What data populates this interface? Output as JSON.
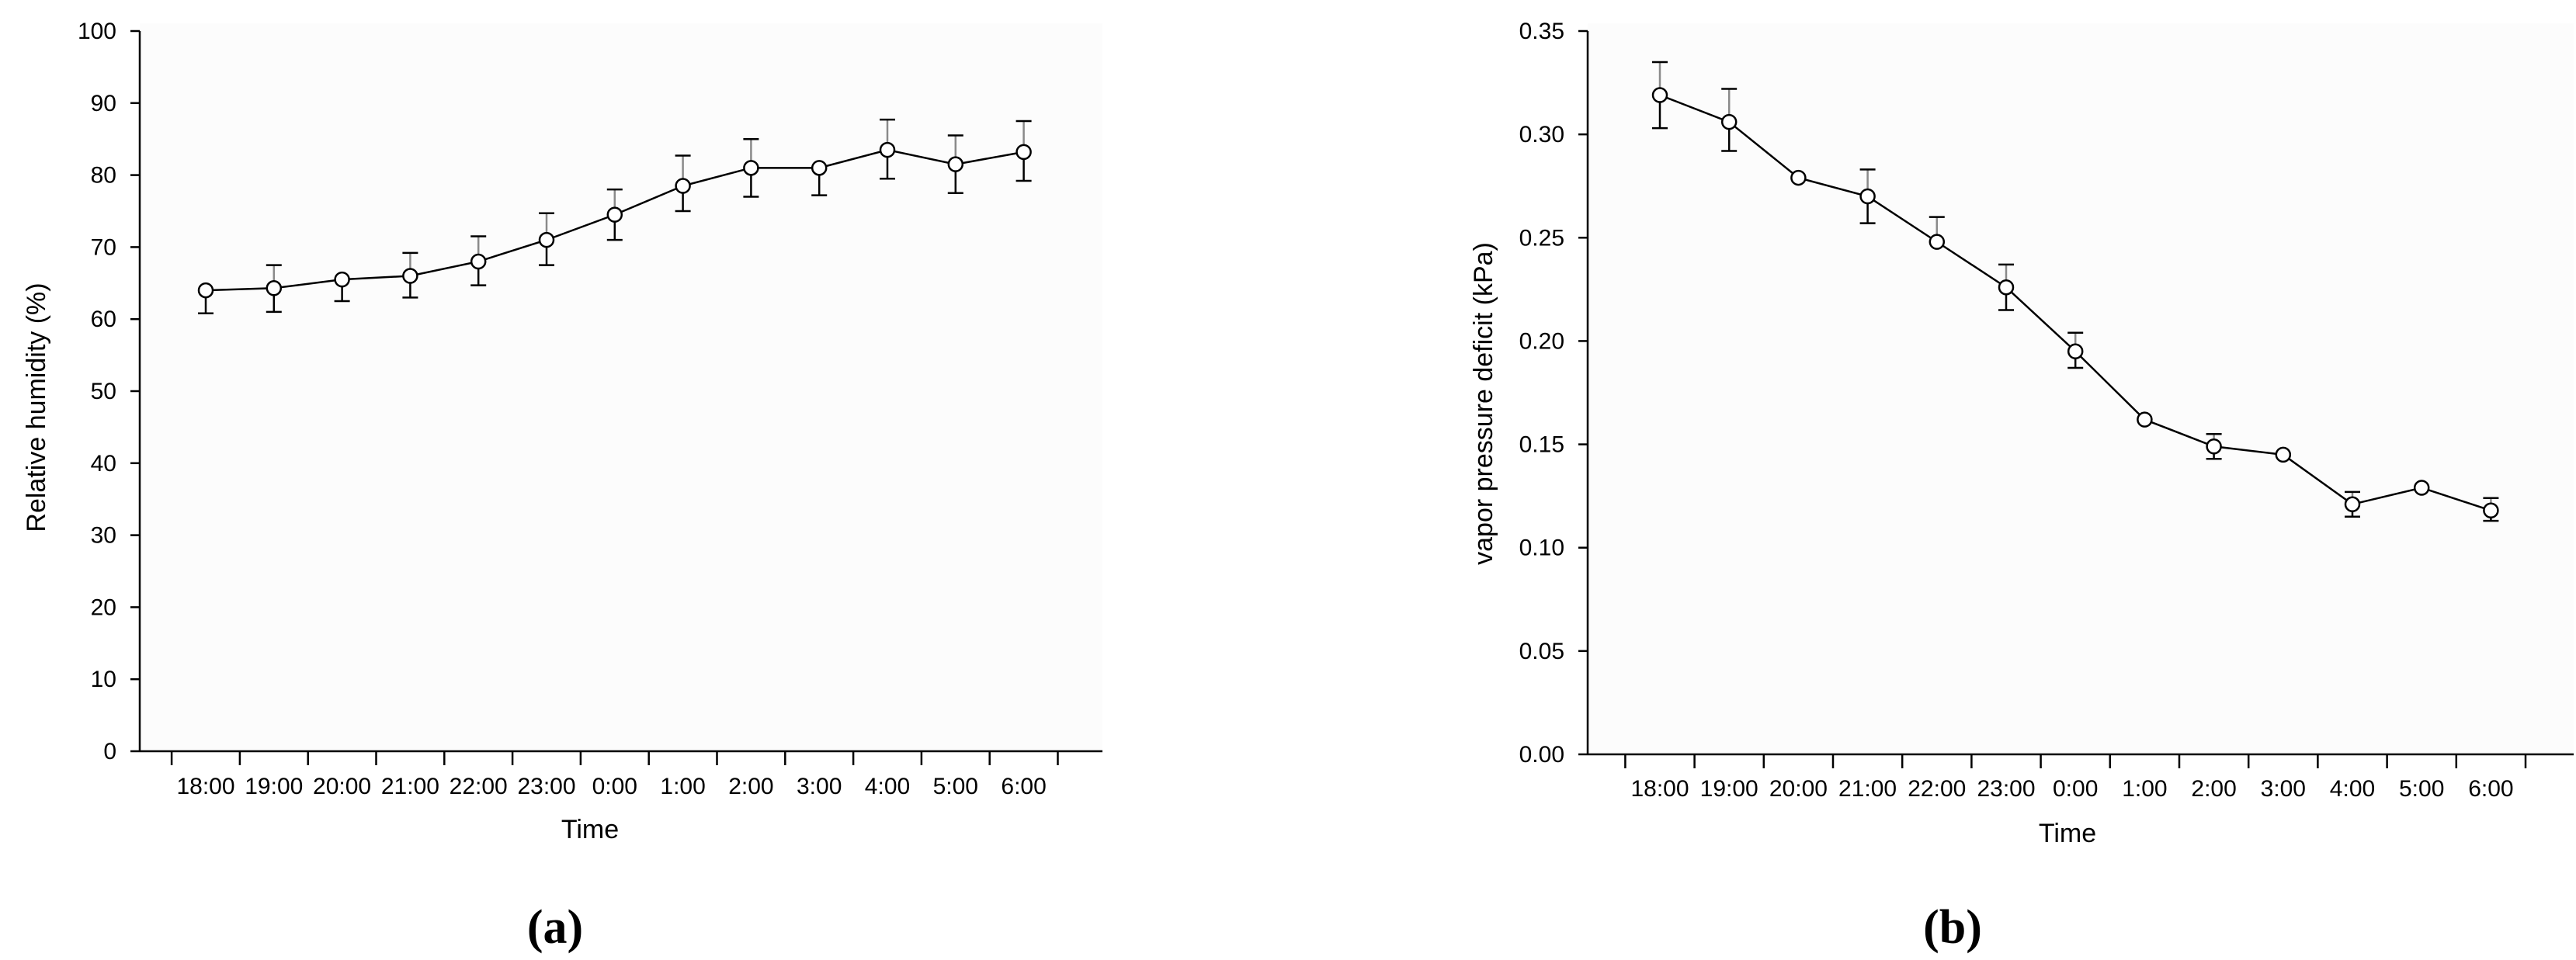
{
  "chart_data": [
    {
      "type": "line",
      "panel_label": "(a)",
      "xlabel": "Time",
      "ylabel": "Relative humidity (%)",
      "categories": [
        "18:00",
        "19:00",
        "20:00",
        "21:00",
        "22:00",
        "23:00",
        "0:00",
        "1:00",
        "2:00",
        "3:00",
        "4:00",
        "5:00",
        "6:00"
      ],
      "series": [
        {
          "values": [
            64.0,
            64.3,
            65.5,
            66.0,
            68.0,
            71.0,
            74.5,
            78.5,
            81.0,
            81.0,
            83.5,
            81.5,
            83.2
          ],
          "err_low": [
            60.8,
            61.0,
            62.5,
            63.0,
            64.7,
            67.5,
            71.0,
            75.0,
            77.0,
            77.2,
            79.5,
            77.5,
            79.2
          ],
          "err_high": [
            null,
            67.5,
            null,
            69.2,
            71.5,
            74.7,
            78.0,
            82.7,
            85.0,
            null,
            87.7,
            85.5,
            87.5
          ]
        }
      ],
      "ylim": [
        0,
        100
      ],
      "yticks": [
        "0",
        "10",
        "20",
        "30",
        "40",
        "50",
        "60",
        "70",
        "80",
        "90",
        "100"
      ],
      "ytick_values": [
        0,
        10,
        20,
        30,
        40,
        50,
        60,
        70,
        80,
        90,
        100
      ],
      "grid": false
    },
    {
      "type": "line",
      "panel_label": "(b)",
      "xlabel": "Time",
      "ylabel": "vapor pressure deficit (kPa)",
      "categories": [
        "18:00",
        "19:00",
        "20:00",
        "21:00",
        "22:00",
        "23:00",
        "0:00",
        "1:00",
        "2:00",
        "3:00",
        "4:00",
        "5:00",
        "6:00"
      ],
      "series": [
        {
          "values": [
            0.319,
            0.306,
            0.279,
            0.27,
            0.248,
            0.226,
            0.195,
            0.162,
            0.149,
            0.145,
            0.121,
            0.129,
            0.118
          ],
          "err_low": [
            0.303,
            0.292,
            null,
            0.257,
            null,
            0.215,
            0.187,
            null,
            0.143,
            null,
            0.115,
            null,
            0.113
          ],
          "err_high": [
            0.335,
            0.322,
            null,
            0.283,
            0.26,
            0.237,
            0.204,
            null,
            0.155,
            null,
            0.127,
            null,
            0.124
          ]
        }
      ],
      "ylim": [
        0,
        0.35
      ],
      "yticks": [
        "0.00",
        "0.05",
        "0.10",
        "0.15",
        "0.20",
        "0.25",
        "0.30",
        "0.35"
      ],
      "ytick_values": [
        0,
        0.05,
        0.1,
        0.15,
        0.2,
        0.25,
        0.3,
        0.35
      ],
      "grid": false
    }
  ]
}
